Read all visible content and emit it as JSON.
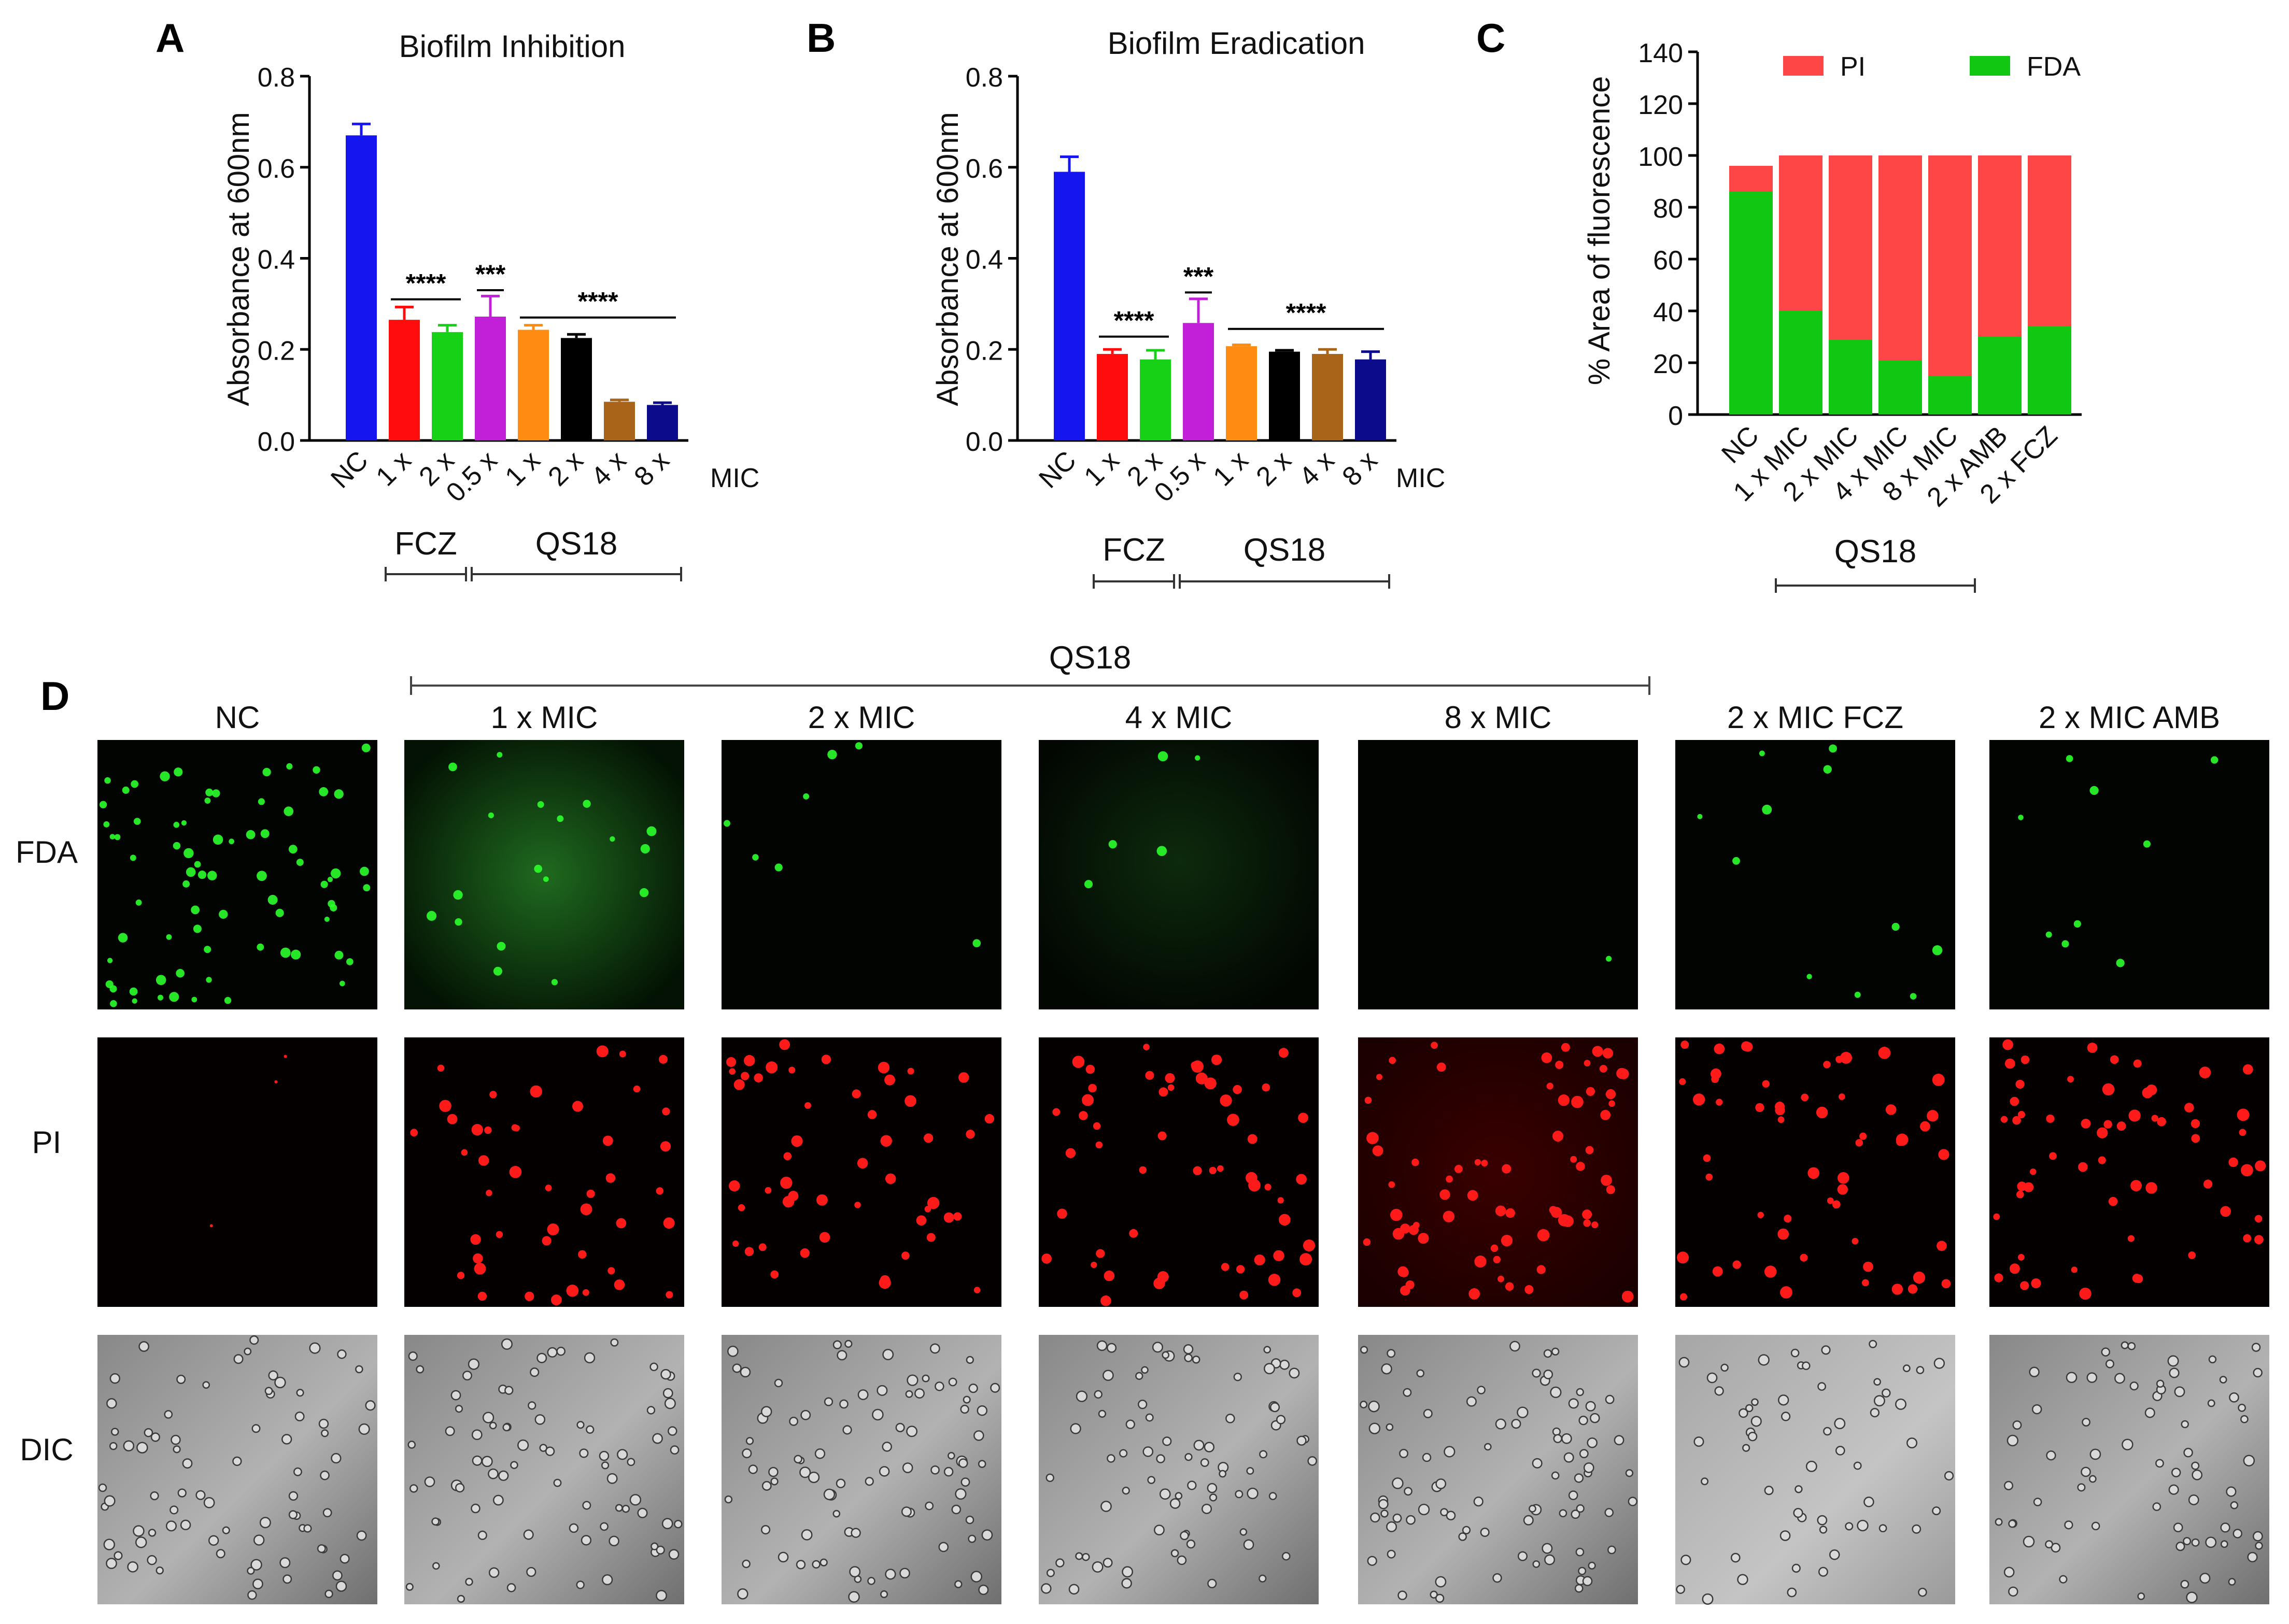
{
  "panels": {
    "A": {
      "letter": "A"
    },
    "B": {
      "letter": "B"
    },
    "C": {
      "letter": "C"
    },
    "D": {
      "letter": "D"
    }
  },
  "chart_data": [
    {
      "panel": "A",
      "type": "bar",
      "title": "Biofilm Inhibition",
      "ylabel": "Absorbance at 600nm",
      "xlabel": "",
      "ylim": [
        0,
        0.8
      ],
      "yticks": [
        "0.0",
        "0.2",
        "0.4",
        "0.6",
        "0.8"
      ],
      "categories": [
        "NC",
        "1 x",
        "2 x",
        "0.5 x",
        "1 x",
        "2 x",
        "4 x",
        "8 x"
      ],
      "axis_suffix": "MIC",
      "values": [
        0.67,
        0.265,
        0.238,
        0.272,
        0.243,
        0.225,
        0.085,
        0.078
      ],
      "errors": [
        0.025,
        0.028,
        0.015,
        0.045,
        0.01,
        0.008,
        0.004,
        0.005
      ],
      "colors": [
        "#1515f0",
        "#ff0d0d",
        "#17d117",
        "#c21fd9",
        "#ff8c12",
        "#000000",
        "#a8651a",
        "#0b0b8c"
      ],
      "groups": [
        {
          "label": "FCZ",
          "from": 1,
          "to": 2
        },
        {
          "label": "QS18",
          "from": 3,
          "to": 7
        }
      ],
      "significance": [
        {
          "label": "****",
          "from": 1,
          "to": 2,
          "y": 0.31
        },
        {
          "label": "***",
          "from": 3,
          "to": 3,
          "y": 0.33
        },
        {
          "label": "****",
          "from": 4,
          "to": 7,
          "y": 0.27
        }
      ]
    },
    {
      "panel": "B",
      "type": "bar",
      "title": "Biofilm Eradication",
      "ylabel": "Absorbance at 600nm",
      "xlabel": "",
      "ylim": [
        0,
        0.8
      ],
      "yticks": [
        "0.0",
        "0.2",
        "0.4",
        "0.6",
        "0.8"
      ],
      "categories": [
        "NC",
        "1 x",
        "2 x",
        "0.5 x",
        "1 x",
        "2 x",
        "4 x",
        "8 x"
      ],
      "axis_suffix": "MIC",
      "values": [
        0.59,
        0.19,
        0.178,
        0.258,
        0.207,
        0.195,
        0.19,
        0.178
      ],
      "errors": [
        0.033,
        0.01,
        0.02,
        0.053,
        0.003,
        0.003,
        0.01,
        0.017
      ],
      "colors": [
        "#1515f0",
        "#ff0d0d",
        "#17d117",
        "#c21fd9",
        "#ff8c12",
        "#000000",
        "#a8651a",
        "#0b0b8c"
      ],
      "groups": [
        {
          "label": "FCZ",
          "from": 1,
          "to": 2
        },
        {
          "label": "QS18",
          "from": 3,
          "to": 7
        }
      ],
      "significance": [
        {
          "label": "****",
          "from": 1,
          "to": 2,
          "y": 0.228
        },
        {
          "label": "***",
          "from": 3,
          "to": 3,
          "y": 0.325
        },
        {
          "label": "****",
          "from": 4,
          "to": 7,
          "y": 0.245
        }
      ]
    },
    {
      "panel": "C",
      "type": "bar",
      "stacked": true,
      "title": "",
      "ylabel": "% Area of fluorescence",
      "xlabel": "",
      "ylim": [
        0,
        140
      ],
      "yticks": [
        "0",
        "20",
        "40",
        "60",
        "80",
        "100",
        "120",
        "140"
      ],
      "categories": [
        "NC",
        "1 x MIC",
        "2 x MIC",
        "4 x MIC",
        "8 x MIC",
        "2 x AMB",
        "2 x FCZ"
      ],
      "series": [
        {
          "name": "FDA",
          "color": "#11c711",
          "values": [
            86,
            40,
            29,
            21,
            15,
            30,
            34
          ]
        },
        {
          "name": "PI",
          "color": "#ff4646",
          "values": [
            10,
            60,
            71,
            79,
            85,
            70,
            66
          ]
        }
      ],
      "legend_position": "top",
      "groups": [
        {
          "label": "QS18",
          "from": 1,
          "to": 4
        }
      ]
    }
  ],
  "microscopy": {
    "group_label": "QS18",
    "columns": [
      "NC",
      "1 x MIC",
      "2 x MIC",
      "4 x MIC",
      "8 x MIC",
      "2 x MIC FCZ",
      "2 x MIC AMB"
    ],
    "rows": [
      {
        "label": "FDA",
        "stain": "green",
        "cells_shown": [
          74,
          18,
          7,
          5,
          1,
          11,
          9
        ]
      },
      {
        "label": "PI",
        "stain": "red",
        "cells_shown": [
          3,
          45,
          50,
          55,
          70,
          55,
          60
        ]
      },
      {
        "label": "DIC",
        "stain": "gray",
        "cells_shown": [
          80,
          85,
          90,
          80,
          90,
          60,
          75
        ]
      }
    ]
  }
}
